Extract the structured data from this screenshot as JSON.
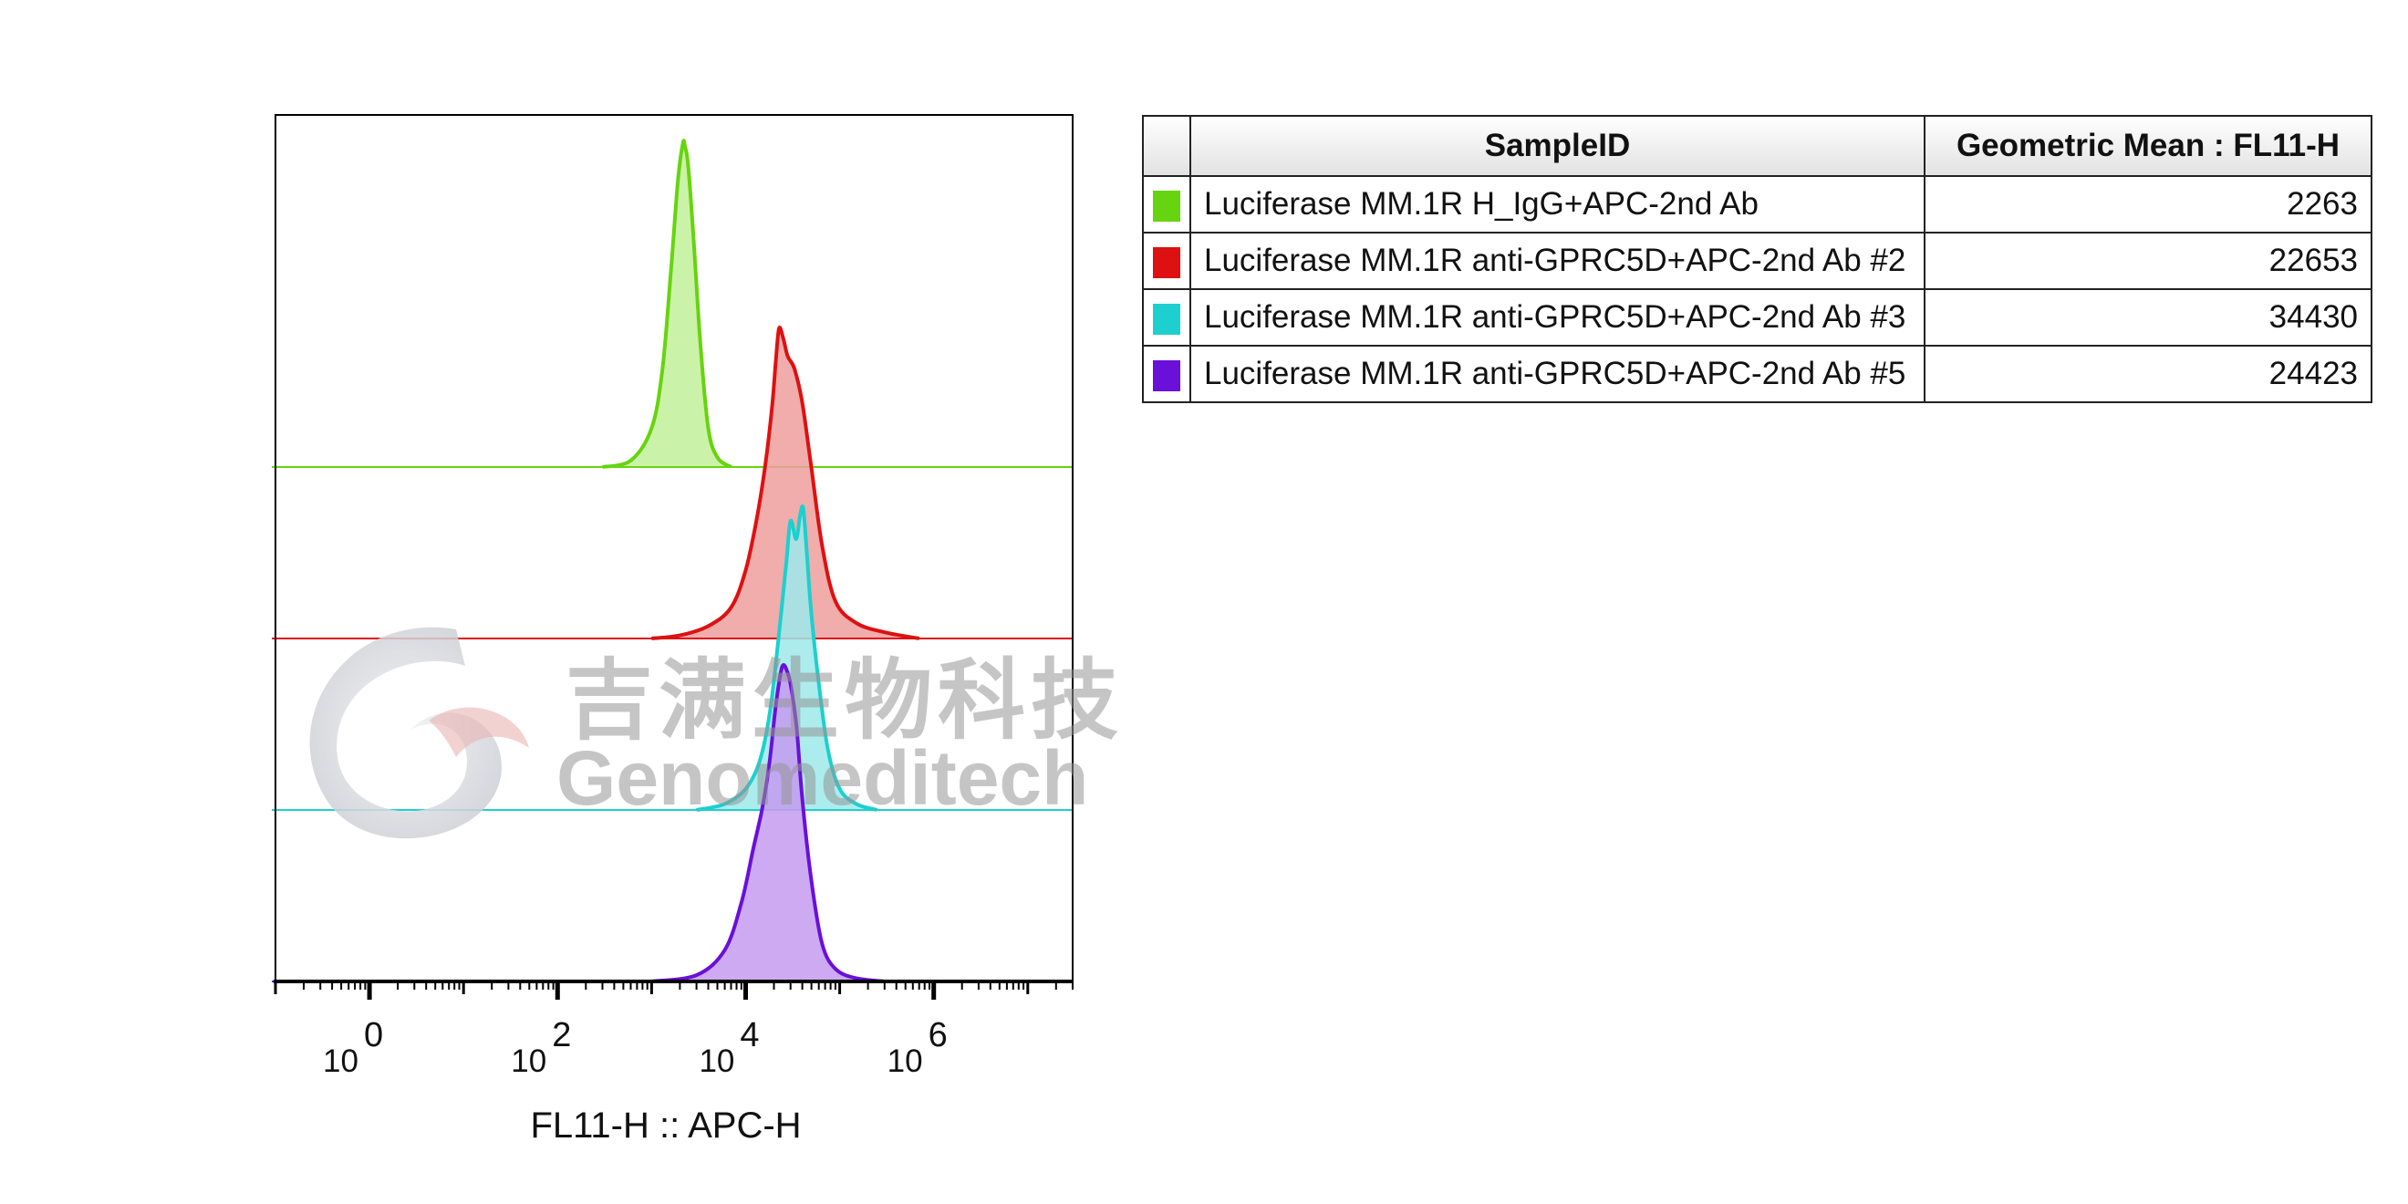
{
  "chart_data": {
    "type": "area",
    "style": "offset histogram overlay",
    "xlabel": "FL11-H :: APC-H",
    "x_scale": "log",
    "xlim": [
      0.1,
      30000000
    ],
    "x_ticks": [
      {
        "value": 1,
        "base": "10",
        "exp": "0"
      },
      {
        "value": 100,
        "base": "10",
        "exp": "2"
      },
      {
        "value": 10000,
        "base": "10",
        "exp": "4"
      },
      {
        "value": 1000000,
        "base": "10",
        "exp": "6"
      }
    ],
    "grid": false,
    "legend_placement": "right (table)",
    "series": [
      {
        "name": "Luciferase MM.1R H_IgG+APC-2nd Ab",
        "geometric_mean": "2263",
        "color": "#66d40e",
        "fill": "#c2f09a",
        "x": [
          300,
          600,
          1000,
          1300,
          1600,
          1900,
          2150,
          2263,
          2450,
          2800,
          3300,
          4000,
          5000,
          7000
        ],
        "y": [
          0,
          0.02,
          0.12,
          0.3,
          0.6,
          0.88,
          1.0,
          0.99,
          0.93,
          0.7,
          0.38,
          0.12,
          0.03,
          0
        ]
      },
      {
        "name": "Luciferase MM.1R anti-GPRC5D+APC-2nd Ab #2",
        "geometric_mean": "22653",
        "color": "#dd1111",
        "fill": "#ee9d9d",
        "x": [
          1000,
          2000,
          4000,
          7000,
          10000,
          13000,
          16000,
          19000,
          21000,
          22653,
          25000,
          28000,
          33000,
          40000,
          50000,
          65000,
          90000,
          150000,
          300000,
          700000
        ],
        "y": [
          0,
          0.01,
          0.04,
          0.1,
          0.22,
          0.38,
          0.55,
          0.74,
          0.9,
          1.0,
          0.97,
          0.91,
          0.87,
          0.76,
          0.55,
          0.3,
          0.12,
          0.05,
          0.02,
          0
        ]
      },
      {
        "name": "Luciferase MM.1R anti-GPRC5D+APC-2nd Ab #3",
        "geometric_mean": "34430",
        "color": "#1ecfcf",
        "fill": "#9de9ea",
        "x": [
          3000,
          6000,
          10000,
          14000,
          18000,
          22000,
          27000,
          30000,
          34430,
          38000,
          41000,
          45000,
          50000,
          60000,
          75000,
          100000,
          150000,
          250000
        ],
        "y": [
          0,
          0.02,
          0.07,
          0.16,
          0.32,
          0.55,
          0.82,
          0.96,
          0.9,
          0.98,
          1.0,
          0.84,
          0.65,
          0.42,
          0.2,
          0.07,
          0.02,
          0
        ]
      },
      {
        "name": "Luciferase MM.1R anti-GPRC5D+APC-2nd Ab #5",
        "geometric_mean": "24423",
        "color": "#6a10d8",
        "fill": "#c49bee",
        "x": [
          1000,
          3000,
          6000,
          9000,
          12000,
          15000,
          18000,
          21000,
          24423,
          28000,
          31000,
          35000,
          40000,
          50000,
          65000,
          90000,
          150000,
          300000
        ],
        "y": [
          0,
          0.02,
          0.1,
          0.25,
          0.42,
          0.55,
          0.7,
          0.88,
          1.0,
          0.98,
          0.92,
          0.8,
          0.58,
          0.32,
          0.12,
          0.04,
          0.01,
          0
        ]
      }
    ]
  },
  "table": {
    "header_sample": "SampleID",
    "header_mean": "Geometric Mean : FL11-H",
    "rows": [
      {
        "sample": "Luciferase MM.1R H_IgG+APC-2nd Ab",
        "mean": "2263",
        "color": "#66d40e"
      },
      {
        "sample": "Luciferase MM.1R anti-GPRC5D+APC-2nd Ab #2",
        "mean": "22653",
        "color": "#dd1111"
      },
      {
        "sample": "Luciferase MM.1R anti-GPRC5D+APC-2nd Ab #3",
        "mean": "34430",
        "color": "#1ecfcf"
      },
      {
        "sample": "Luciferase MM.1R anti-GPRC5D+APC-2nd Ab #5",
        "mean": "24423",
        "color": "#6a10d8"
      }
    ]
  },
  "watermark": {
    "cn": "吉满生物科技",
    "en": "Genomeditech"
  }
}
